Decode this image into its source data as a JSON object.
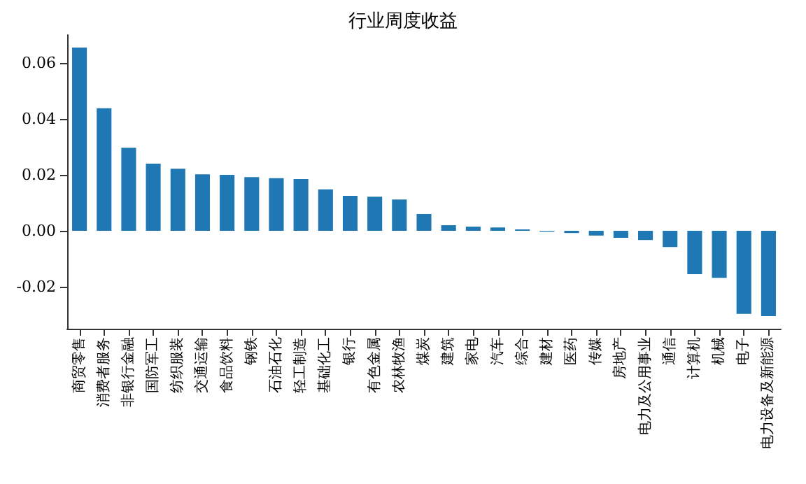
{
  "chart_data": {
    "type": "bar",
    "title": "行业周度收益",
    "categories": [
      "商贸零售",
      "消费者服务",
      "非银行金融",
      "国防军工",
      "纺织服装",
      "交通运输",
      "食品饮料",
      "钢铁",
      "石油石化",
      "轻工制造",
      "基础化工",
      "银行",
      "有色金属",
      "农林牧渔",
      "煤炭",
      "建筑",
      "家电",
      "汽车",
      "综合",
      "建材",
      "医药",
      "传媒",
      "房地产",
      "电力及公用事业",
      "通信",
      "计算机",
      "机械",
      "电子",
      "电力设备及新能源"
    ],
    "values": [
      0.0655,
      0.0438,
      0.0297,
      0.024,
      0.0222,
      0.0202,
      0.02,
      0.0192,
      0.0188,
      0.0185,
      0.0148,
      0.0125,
      0.0122,
      0.0112,
      0.006,
      0.002,
      0.0015,
      0.0012,
      0.0005,
      -0.0003,
      -0.0008,
      -0.0017,
      -0.0025,
      -0.0033,
      -0.0058,
      -0.0155,
      -0.0168,
      -0.0297,
      -0.0305
    ],
    "color": "#1f77b4",
    "ylim": [
      -0.035,
      0.07
    ],
    "yticks": [
      {
        "value": -0.02,
        "label": "-0.02"
      },
      {
        "value": 0,
        "label": "0.00"
      },
      {
        "value": 0.02,
        "label": "0.02"
      },
      {
        "value": 0.04,
        "label": "0.04"
      },
      {
        "value": 0.06,
        "label": "0.06"
      }
    ],
    "grid": false
  }
}
